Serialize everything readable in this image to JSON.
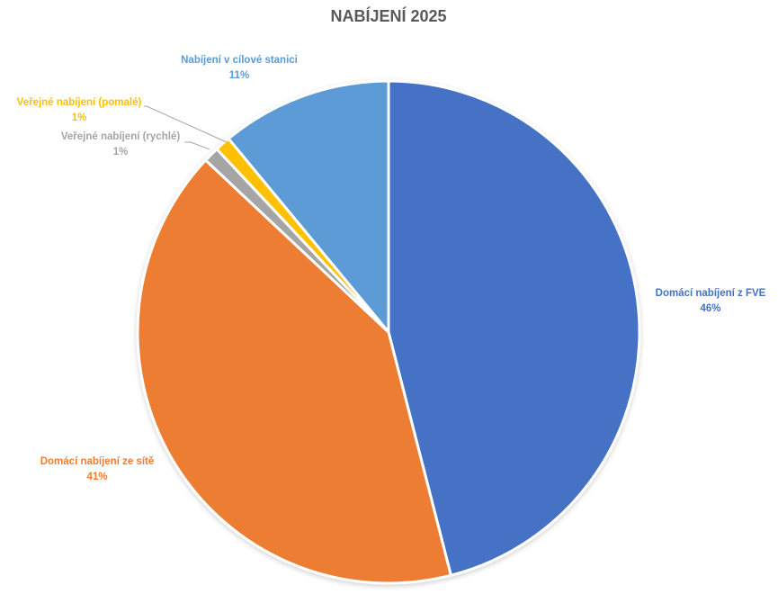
{
  "chart_data": {
    "type": "pie",
    "title": "NABÍJENÍ 2025",
    "slices": [
      {
        "label": "Domácí nabíjení z FVE",
        "value": 46,
        "display": "46%",
        "color": "#4472C4"
      },
      {
        "label": "Domácí nabíjení ze sítě",
        "value": 41,
        "display": "41%",
        "color": "#ED7D31"
      },
      {
        "label": "Veřejné nabíjení (rychlé)",
        "value": 1,
        "display": "1%",
        "color": "#A5A5A5"
      },
      {
        "label": "Veřejné nabíjení (pomalé)",
        "value": 1,
        "display": "1%",
        "color": "#FFC000"
      },
      {
        "label": "Nabíjení v cílové stanici",
        "value": 11,
        "display": "11%",
        "color": "#5B9BD5"
      }
    ],
    "legend": "none",
    "title_color": "#595959"
  }
}
